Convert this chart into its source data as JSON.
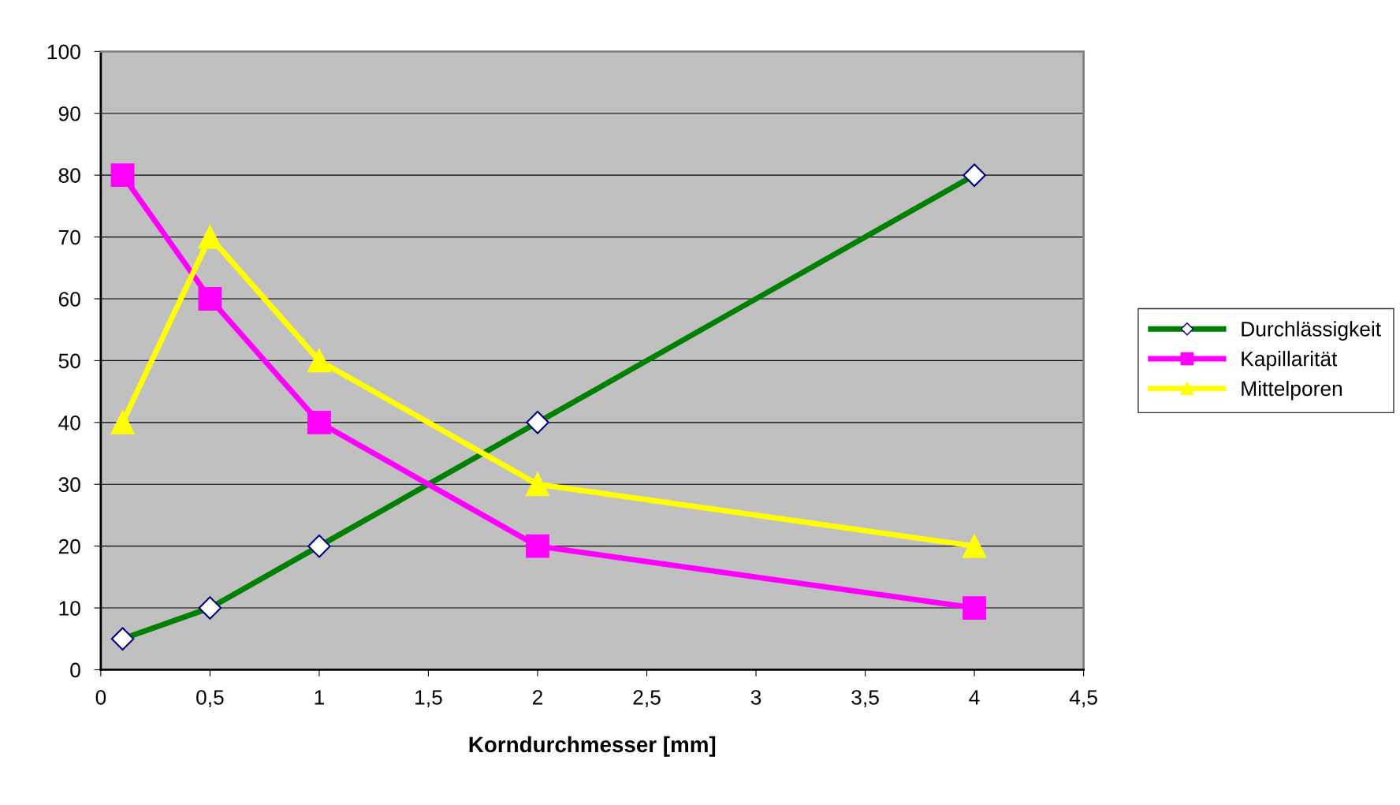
{
  "chart_data": {
    "type": "line",
    "xlabel": "Korndurchmesser [mm]",
    "x": [
      0.1,
      0.5,
      1,
      2,
      4
    ],
    "xlim": [
      0,
      4.5
    ],
    "xticks": [
      {
        "value": 0,
        "label": "0"
      },
      {
        "value": 0.5,
        "label": "0,5"
      },
      {
        "value": 1,
        "label": "1"
      },
      {
        "value": 1.5,
        "label": "1,5"
      },
      {
        "value": 2,
        "label": "2"
      },
      {
        "value": 2.5,
        "label": "2,5"
      },
      {
        "value": 3,
        "label": "3"
      },
      {
        "value": 3.5,
        "label": "3,5"
      },
      {
        "value": 4,
        "label": "4"
      },
      {
        "value": 4.5,
        "label": "4,5"
      }
    ],
    "ylim": [
      0,
      100
    ],
    "yticks": [
      0,
      10,
      20,
      30,
      40,
      50,
      60,
      70,
      80,
      90,
      100
    ],
    "grid": "y",
    "legend": "right",
    "series": [
      {
        "name": "Durchlässigkeit",
        "color": "#008000",
        "marker": "diamond",
        "values": [
          5,
          10,
          20,
          40,
          80
        ]
      },
      {
        "name": "Kapillarität",
        "color": "#ff00ff",
        "marker": "square",
        "values": [
          80,
          60,
          40,
          20,
          10
        ]
      },
      {
        "name": "Mittelporen",
        "color": "#ffff00",
        "marker": "triangle",
        "values": [
          40,
          70,
          50,
          30,
          20
        ]
      }
    ]
  }
}
